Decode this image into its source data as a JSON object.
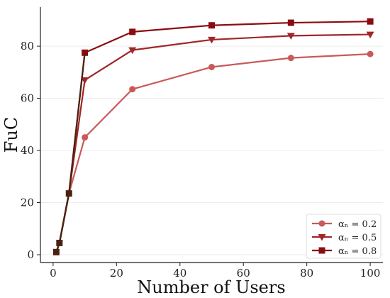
{
  "chart_data": {
    "type": "line",
    "title": "",
    "xlabel": "Number of Users",
    "ylabel": "FuC",
    "xlim": [
      -4,
      104
    ],
    "ylim": [
      -3,
      95
    ],
    "xticks": [
      0,
      20,
      40,
      60,
      80,
      100
    ],
    "yticks": [
      0,
      20,
      40,
      60,
      80
    ],
    "grid": true,
    "legend_position": "bottom-right",
    "x": [
      1,
      2,
      5,
      10,
      25,
      50,
      75,
      100
    ],
    "series": [
      {
        "name": "αₙ = 0.2",
        "color": "#c85a5a",
        "marker": "circle",
        "values": [
          1,
          4.5,
          23.5,
          45,
          63.5,
          72,
          75.5,
          77
        ]
      },
      {
        "name": "αₙ = 0.5",
        "color": "#a0262a",
        "marker": "triangle-down",
        "values": [
          1,
          4.5,
          23.5,
          67,
          78.5,
          82.5,
          84,
          84.5
        ]
      },
      {
        "name": "αₙ = 0.8",
        "color": "#8b0c10",
        "marker": "square",
        "values": [
          1,
          4.5,
          23.5,
          77.5,
          85.5,
          88,
          89,
          89.5
        ]
      }
    ],
    "overlap_color": "#4a2210"
  }
}
